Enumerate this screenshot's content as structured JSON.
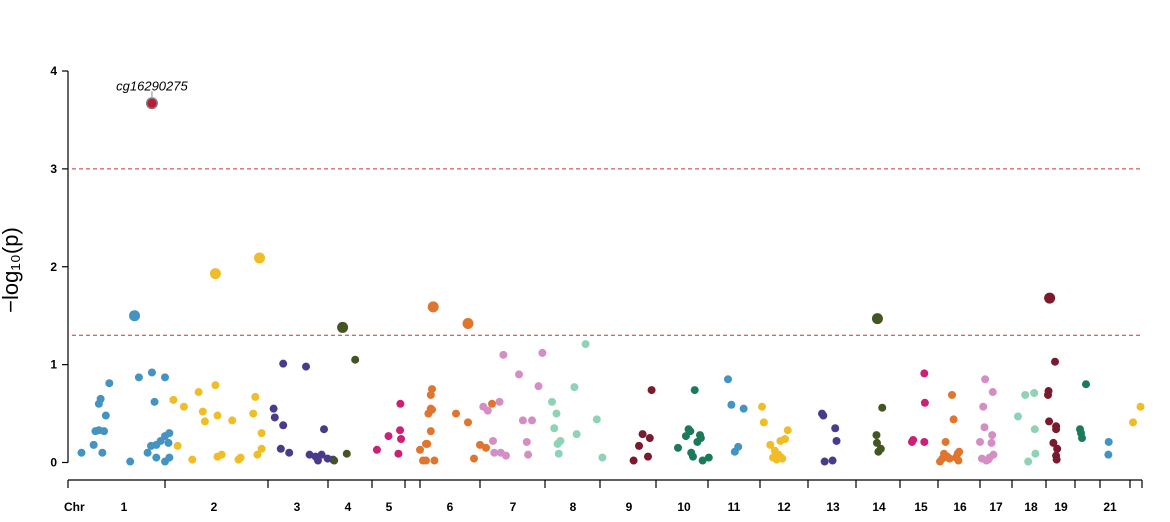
{
  "chart_data": {
    "type": "scatter",
    "title": "",
    "xlabel": "",
    "ylabel": "−log₁₀(p)",
    "ylim": [
      0,
      4
    ],
    "y_ticks": [
      0,
      1,
      2,
      3,
      4
    ],
    "x_axis_prefix": "Chr",
    "chromosome_labels": [
      "1",
      "2",
      "3",
      "4",
      "5",
      "6",
      "7",
      "8",
      "9",
      "10",
      "11",
      "12",
      "13",
      "14",
      "15",
      "16",
      "17",
      "18",
      "19",
      "21"
    ],
    "thresholds": [
      3,
      1.3
    ],
    "colors": {
      "chr1": "#4393c3",
      "chr2": "#f0bd27",
      "chr3": "#4b3a8c",
      "chr4": "#445522",
      "chr5": "#cc1f77",
      "chr6": "#e0752d",
      "chr7": "#d58ec3",
      "chr8": "#8fd3b6",
      "chr9": "#7a1a2c",
      "chr10": "#1b7a5a",
      "chr11": "#4393c3",
      "chr12": "#f0bd27",
      "chr13": "#4b3a8c",
      "chr14": "#445522",
      "chr15": "#cc1f77",
      "chr16": "#e0752d",
      "chr17": "#d58ec3",
      "chr18": "#8fd3b6",
      "chr19": "#7a1a2c",
      "chr20": "#1b7a5a",
      "chr21": "#4393c3",
      "chr22": "#f0bd27",
      "highlight": "#c0183a"
    },
    "annotation": {
      "label": "cg16290275",
      "chrom": "1",
      "y": 3.67
    },
    "series": [
      {
        "chrom": "1",
        "points": [
          [
            0.04,
            0.1
          ],
          [
            0.18,
            0.18
          ],
          [
            0.2,
            0.32
          ],
          [
            0.24,
            0.6
          ],
          [
            0.26,
            0.65
          ],
          [
            0.24,
            0.33
          ],
          [
            0.3,
            0.32
          ],
          [
            0.32,
            0.48
          ],
          [
            0.36,
            0.81
          ],
          [
            0.28,
            0.1
          ],
          [
            0.6,
            0.01
          ],
          [
            0.7,
            0.87
          ],
          [
            0.85,
            0.92
          ],
          [
            1.0,
            0.87
          ],
          [
            0.88,
            0.62
          ],
          [
            0.84,
            0.17
          ],
          [
            0.9,
            0.18
          ],
          [
            0.95,
            0.22
          ],
          [
            1.05,
            0.3
          ],
          [
            1.0,
            0.27
          ],
          [
            0.8,
            0.1
          ],
          [
            0.9,
            0.05
          ],
          [
            1.0,
            0.01
          ],
          [
            1.05,
            0.05
          ],
          [
            1.04,
            0.2
          ]
        ],
        "big": [
          [
            0.65,
            1.5
          ]
        ],
        "highlight": [
          [
            0.85,
            3.67
          ]
        ]
      },
      {
        "chrom": "2",
        "points": [
          [
            0.08,
            0.64
          ],
          [
            0.12,
            0.17
          ],
          [
            0.18,
            0.57
          ],
          [
            0.26,
            0.03
          ],
          [
            0.32,
            0.72
          ],
          [
            0.36,
            0.52
          ],
          [
            0.38,
            0.42
          ],
          [
            0.48,
            0.79
          ],
          [
            0.5,
            0.48
          ],
          [
            0.5,
            0.06
          ],
          [
            0.54,
            0.08
          ],
          [
            0.64,
            0.43
          ],
          [
            0.72,
            0.05
          ],
          [
            0.7,
            0.03
          ],
          [
            0.84,
            0.5
          ],
          [
            0.86,
            0.67
          ],
          [
            0.88,
            0.08
          ],
          [
            0.92,
            0.3
          ],
          [
            0.92,
            0.14
          ]
        ],
        "big": [
          [
            0.48,
            1.93
          ],
          [
            0.9,
            2.09
          ]
        ]
      },
      {
        "chrom": "3",
        "points": [
          [
            0.06,
            0.55
          ],
          [
            0.08,
            0.46
          ],
          [
            0.18,
            0.14
          ],
          [
            0.22,
            0.38
          ],
          [
            0.22,
            1.01
          ],
          [
            0.32,
            0.1
          ],
          [
            0.6,
            0.98
          ],
          [
            0.66,
            0.08
          ],
          [
            0.76,
            0.06
          ],
          [
            0.8,
            0.02
          ],
          [
            0.86,
            0.08
          ],
          [
            0.9,
            0.34
          ],
          [
            0.96,
            0.04
          ],
          [
            1.05,
            0.03
          ]
        ]
      },
      {
        "chrom": "4",
        "points": [
          [
            0.1,
            0.02
          ],
          [
            0.4,
            0.09
          ],
          [
            0.6,
            1.05
          ]
        ],
        "big": [
          [
            0.3,
            1.38
          ]
        ]
      },
      {
        "chrom": "5",
        "points": [
          [
            0.15,
            0.13
          ],
          [
            0.5,
            0.27
          ],
          [
            0.8,
            0.09
          ],
          [
            0.85,
            0.33
          ],
          [
            0.86,
            0.6
          ],
          [
            0.88,
            0.24
          ]
        ]
      },
      {
        "chrom": "6",
        "points": [
          [
            0.0,
            0.13
          ],
          [
            0.05,
            0.02
          ],
          [
            0.1,
            0.02
          ],
          [
            0.1,
            0.19
          ],
          [
            0.12,
            0.19
          ],
          [
            0.14,
            0.5
          ],
          [
            0.18,
            0.55
          ],
          [
            0.18,
            0.69
          ],
          [
            0.18,
            0.32
          ],
          [
            0.2,
            0.54
          ],
          [
            0.2,
            0.75
          ],
          [
            0.24,
            0.02
          ],
          [
            0.6,
            0.5
          ],
          [
            0.8,
            0.41
          ],
          [
            0.9,
            0.04
          ],
          [
            1.0,
            0.18
          ],
          [
            1.1,
            0.15
          ],
          [
            1.2,
            0.6
          ]
        ],
        "big": [
          [
            0.22,
            1.59
          ],
          [
            0.8,
            1.42
          ]
        ]
      },
      {
        "chrom": "7",
        "points": [
          [
            0.05,
            0.57
          ],
          [
            0.12,
            0.53
          ],
          [
            0.2,
            0.22
          ],
          [
            0.22,
            0.1
          ],
          [
            0.3,
            0.62
          ],
          [
            0.32,
            0.1
          ],
          [
            0.36,
            1.1
          ],
          [
            0.4,
            0.07
          ],
          [
            0.6,
            0.9
          ],
          [
            0.66,
            0.43
          ],
          [
            0.72,
            0.21
          ],
          [
            0.74,
            0.08
          ],
          [
            0.8,
            0.43
          ],
          [
            0.96,
            1.12
          ],
          [
            0.9,
            0.78
          ]
        ]
      },
      {
        "chrom": "8",
        "points": [
          [
            0.0,
            0.62
          ],
          [
            0.04,
            0.35
          ],
          [
            0.08,
            0.5
          ],
          [
            0.1,
            0.19
          ],
          [
            0.12,
            0.09
          ],
          [
            0.4,
            0.77
          ],
          [
            0.44,
            0.29
          ],
          [
            0.6,
            1.21
          ],
          [
            0.8,
            0.44
          ],
          [
            0.9,
            0.05
          ],
          [
            0.15,
            0.22
          ]
        ]
      },
      {
        "chrom": "9",
        "points": [
          [
            0.08,
            0.02
          ],
          [
            0.2,
            0.17
          ],
          [
            0.28,
            0.29
          ],
          [
            0.4,
            0.06
          ],
          [
            0.44,
            0.25
          ],
          [
            0.48,
            0.74
          ]
        ]
      },
      {
        "chrom": "10",
        "points": [
          [
            0.0,
            0.15
          ],
          [
            0.18,
            0.27
          ],
          [
            0.24,
            0.34
          ],
          [
            0.28,
            0.32
          ],
          [
            0.3,
            0.1
          ],
          [
            0.34,
            0.06
          ],
          [
            0.38,
            0.74
          ],
          [
            0.44,
            0.21
          ],
          [
            0.5,
            0.28
          ],
          [
            0.52,
            0.25
          ],
          [
            0.56,
            0.02
          ],
          [
            0.7,
            0.05
          ]
        ]
      },
      {
        "chrom": "11",
        "points": [
          [
            0.0,
            0.85
          ],
          [
            0.1,
            0.59
          ],
          [
            0.2,
            0.11
          ],
          [
            0.3,
            0.16
          ],
          [
            0.46,
            0.55
          ]
        ]
      },
      {
        "chrom": "12",
        "points": [
          [
            0.0,
            0.57
          ],
          [
            0.04,
            0.41
          ],
          [
            0.18,
            0.18
          ],
          [
            0.24,
            0.05
          ],
          [
            0.28,
            0.12
          ],
          [
            0.32,
            0.03
          ],
          [
            0.36,
            0.08
          ],
          [
            0.4,
            0.22
          ],
          [
            0.42,
            0.05
          ],
          [
            0.44,
            0.04
          ],
          [
            0.5,
            0.24
          ],
          [
            0.56,
            0.33
          ]
        ]
      },
      {
        "chrom": "13",
        "points": [
          [
            0.0,
            0.5
          ],
          [
            0.04,
            0.48
          ],
          [
            0.08,
            0.01
          ],
          [
            0.32,
            0.02
          ],
          [
            0.4,
            0.35
          ],
          [
            0.44,
            0.22
          ]
        ]
      },
      {
        "chrom": "14",
        "points": [
          [
            0.02,
            0.28
          ],
          [
            0.04,
            0.2
          ],
          [
            0.1,
            0.11
          ],
          [
            0.2,
            0.14
          ],
          [
            0.26,
            0.56
          ]
        ],
        "big": [
          [
            0.06,
            1.47
          ]
        ]
      },
      {
        "chrom": "15",
        "points": [
          [
            0.0,
            0.21
          ],
          [
            0.04,
            0.23
          ],
          [
            0.44,
            0.21
          ],
          [
            0.46,
            0.61
          ],
          [
            0.44,
            0.91
          ]
        ]
      },
      {
        "chrom": "16",
        "points": [
          [
            0.0,
            0.01
          ],
          [
            0.06,
            0.04
          ],
          [
            0.1,
            0.09
          ],
          [
            0.14,
            0.21
          ],
          [
            0.18,
            0.06
          ],
          [
            0.24,
            0.04
          ],
          [
            0.3,
            0.69
          ],
          [
            0.34,
            0.44
          ],
          [
            0.4,
            0.05
          ],
          [
            0.44,
            0.09
          ],
          [
            0.46,
            0.02
          ],
          [
            0.48,
            0.11
          ],
          [
            0.2,
            0.05
          ]
        ]
      },
      {
        "chrom": "17",
        "points": [
          [
            0.0,
            0.21
          ],
          [
            0.06,
            0.04
          ],
          [
            0.1,
            0.57
          ],
          [
            0.14,
            0.36
          ],
          [
            0.16,
            0.85
          ],
          [
            0.2,
            0.02
          ],
          [
            0.26,
            0.03
          ],
          [
            0.3,
            0.05
          ],
          [
            0.36,
            0.2
          ],
          [
            0.38,
            0.28
          ],
          [
            0.4,
            0.72
          ],
          [
            0.42,
            0.08
          ]
        ]
      },
      {
        "chrom": "18",
        "points": [
          [
            0.0,
            0.47
          ],
          [
            0.24,
            0.69
          ],
          [
            0.34,
            0.01
          ],
          [
            0.54,
            0.71
          ],
          [
            0.56,
            0.34
          ],
          [
            0.58,
            0.09
          ]
        ]
      },
      {
        "chrom": "19",
        "points": [
          [
            0.0,
            0.69
          ],
          [
            0.02,
            0.73
          ],
          [
            0.04,
            0.42
          ],
          [
            0.2,
            0.2
          ],
          [
            0.26,
            1.03
          ],
          [
            0.3,
            0.34
          ],
          [
            0.3,
            0.37
          ],
          [
            0.34,
            0.14
          ],
          [
            0.3,
            0.07
          ],
          [
            0.32,
            0.03
          ]
        ],
        "big": [
          [
            0.06,
            1.68
          ]
        ]
      },
      {
        "chrom": "20",
        "points": [
          [
            0.0,
            0.34
          ],
          [
            0.05,
            0.3
          ],
          [
            0.1,
            0.25
          ],
          [
            0.3,
            0.8
          ]
        ]
      },
      {
        "chrom": "21",
        "points": [
          [
            0.1,
            0.21
          ],
          [
            0.05,
            0.08
          ]
        ]
      },
      {
        "chrom": "22",
        "points": [
          [
            0.2,
            0.41
          ],
          [
            0.7,
            0.57
          ]
        ]
      }
    ]
  }
}
